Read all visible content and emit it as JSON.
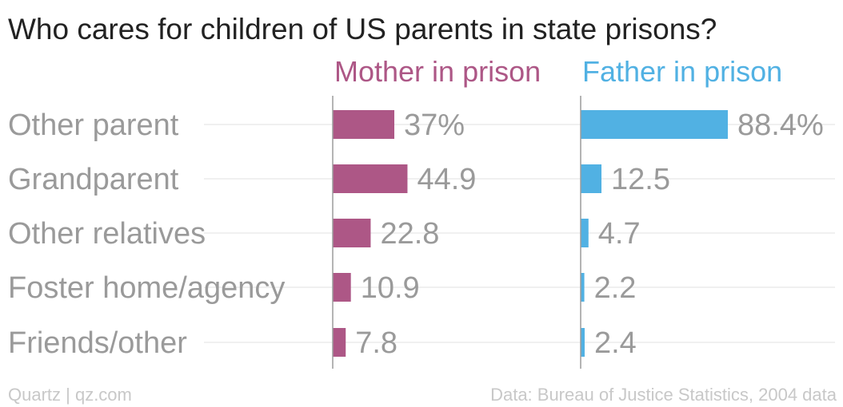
{
  "chart_data": {
    "type": "bar",
    "orientation": "horizontal",
    "title": "Who cares for children of US parents in state prisons?",
    "categories": [
      "Other parent",
      "Grandparent",
      "Other relatives",
      "Foster home/agency",
      "Friends/other"
    ],
    "series": [
      {
        "name": "Mother in prison",
        "color": "#ad5786",
        "values": [
          37,
          44.9,
          22.8,
          10.9,
          7.8
        ],
        "labels": [
          "37%",
          "44.9",
          "22.8",
          "10.9",
          "7.8"
        ]
      },
      {
        "name": "Father in prison",
        "color": "#51b1e3",
        "values": [
          88.4,
          12.5,
          4.7,
          2.2,
          2.4
        ],
        "labels": [
          "88.4%",
          "12.5",
          "4.7",
          "2.2",
          "2.4"
        ]
      }
    ],
    "xlim": [
      0,
      100
    ],
    "layout": "small-multiples-side-by-side",
    "grid": true,
    "label_color": "#9a9a9a",
    "grid_color": "#ebebeb",
    "axis_color": "#9c9c9c",
    "title_color": "#222222"
  },
  "footer": {
    "source_left": "Quartz | qz.com",
    "source_right": "Data: Bureau of Justice Statistics, 2004 data"
  }
}
